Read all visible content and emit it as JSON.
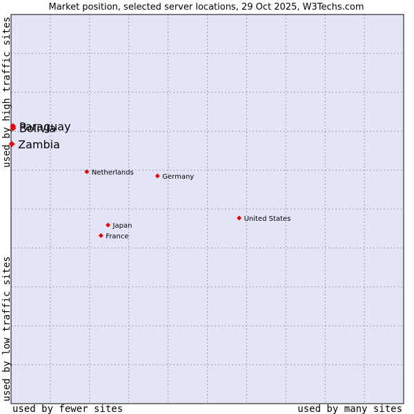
{
  "chart_data": {
    "type": "scatter",
    "title": "Market position, selected server locations, 29 Oct 2025, W3Techs.com",
    "xlabel_left": "used by fewer sites",
    "xlabel_right": "used by many sites",
    "ylabel_top": "used by high traffic sites",
    "ylabel_bottom": "used by low traffic sites",
    "xlim": [
      0,
      10
    ],
    "ylim": [
      0,
      10
    ],
    "grid": true,
    "colors": {
      "plot_background": "#e4e4f8",
      "point": "#ee0000",
      "frame": "#000000"
    },
    "points": [
      {
        "name": "Paraguay",
        "x": 0.05,
        "y": 7.13,
        "emphasis": true
      },
      {
        "name": "Bolivia",
        "x": 0.05,
        "y": 7.08,
        "emphasis": true
      },
      {
        "name": "Zambia",
        "x": 0.02,
        "y": 6.67,
        "emphasis": true
      },
      {
        "name": "Netherlands",
        "x": 1.93,
        "y": 5.96,
        "emphasis": false
      },
      {
        "name": "Germany",
        "x": 3.73,
        "y": 5.85,
        "emphasis": false
      },
      {
        "name": "United States",
        "x": 5.81,
        "y": 4.77,
        "emphasis": false
      },
      {
        "name": "Japan",
        "x": 2.47,
        "y": 4.59,
        "emphasis": false
      },
      {
        "name": "France",
        "x": 2.29,
        "y": 4.32,
        "emphasis": false
      }
    ]
  }
}
